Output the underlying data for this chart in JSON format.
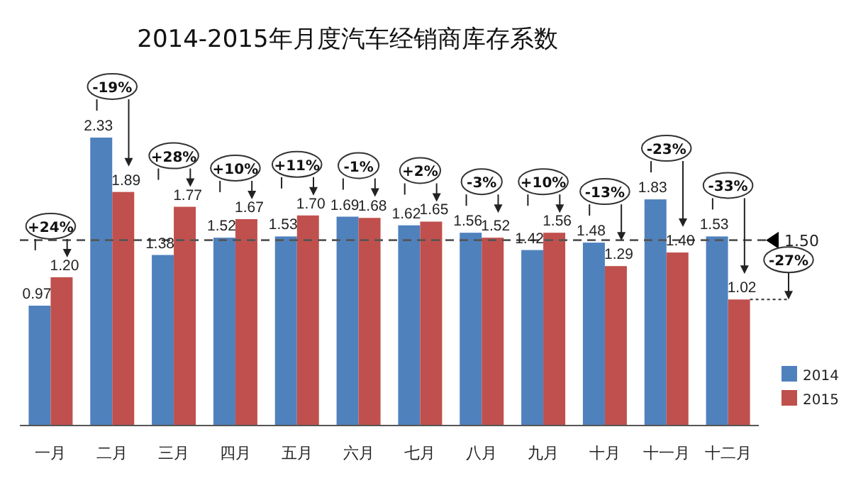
{
  "chart_data": {
    "type": "bar",
    "title": "2014-2015年月度汽车经销商库存系数",
    "categories": [
      "一月",
      "二月",
      "三月",
      "四月",
      "五月",
      "六月",
      "七月",
      "八月",
      "九月",
      "十月",
      "十一月",
      "十二月"
    ],
    "series": [
      {
        "name": "2014",
        "color": "#4f81bd",
        "values": [
          0.97,
          2.33,
          1.38,
          1.52,
          1.53,
          1.69,
          1.62,
          1.56,
          1.42,
          1.48,
          1.83,
          1.53
        ],
        "value_labels": [
          "0.97",
          "2.33",
          "1.38",
          "1.52",
          "1.53",
          "1.69",
          "1.62",
          "1.56",
          "1.42",
          "1.48",
          "1.83",
          "1.53"
        ]
      },
      {
        "name": "2015",
        "color": "#c0504d",
        "values": [
          1.2,
          1.89,
          1.77,
          1.67,
          1.7,
          1.68,
          1.65,
          1.52,
          1.56,
          1.29,
          1.4,
          1.02
        ],
        "value_labels": [
          "1.20",
          "1.89",
          "1.77",
          "1.67",
          "1.70",
          "1.68",
          "1.65",
          "1.52",
          "1.56",
          "1.29",
          "1.40",
          "1.02"
        ]
      }
    ],
    "legend": "bottom right",
    "ref_lines": [
      {
        "axis": "y",
        "value": 1.5,
        "label": "1.50",
        "line_style": "dashed"
      }
    ],
    "annotations": [
      "+24%",
      "-19%",
      "+28%",
      "+10%",
      "+11%",
      "-1%",
      "+2%",
      "-3%",
      "+10%",
      "-13%",
      "-23%",
      "-33%",
      "-27%"
    ]
  }
}
